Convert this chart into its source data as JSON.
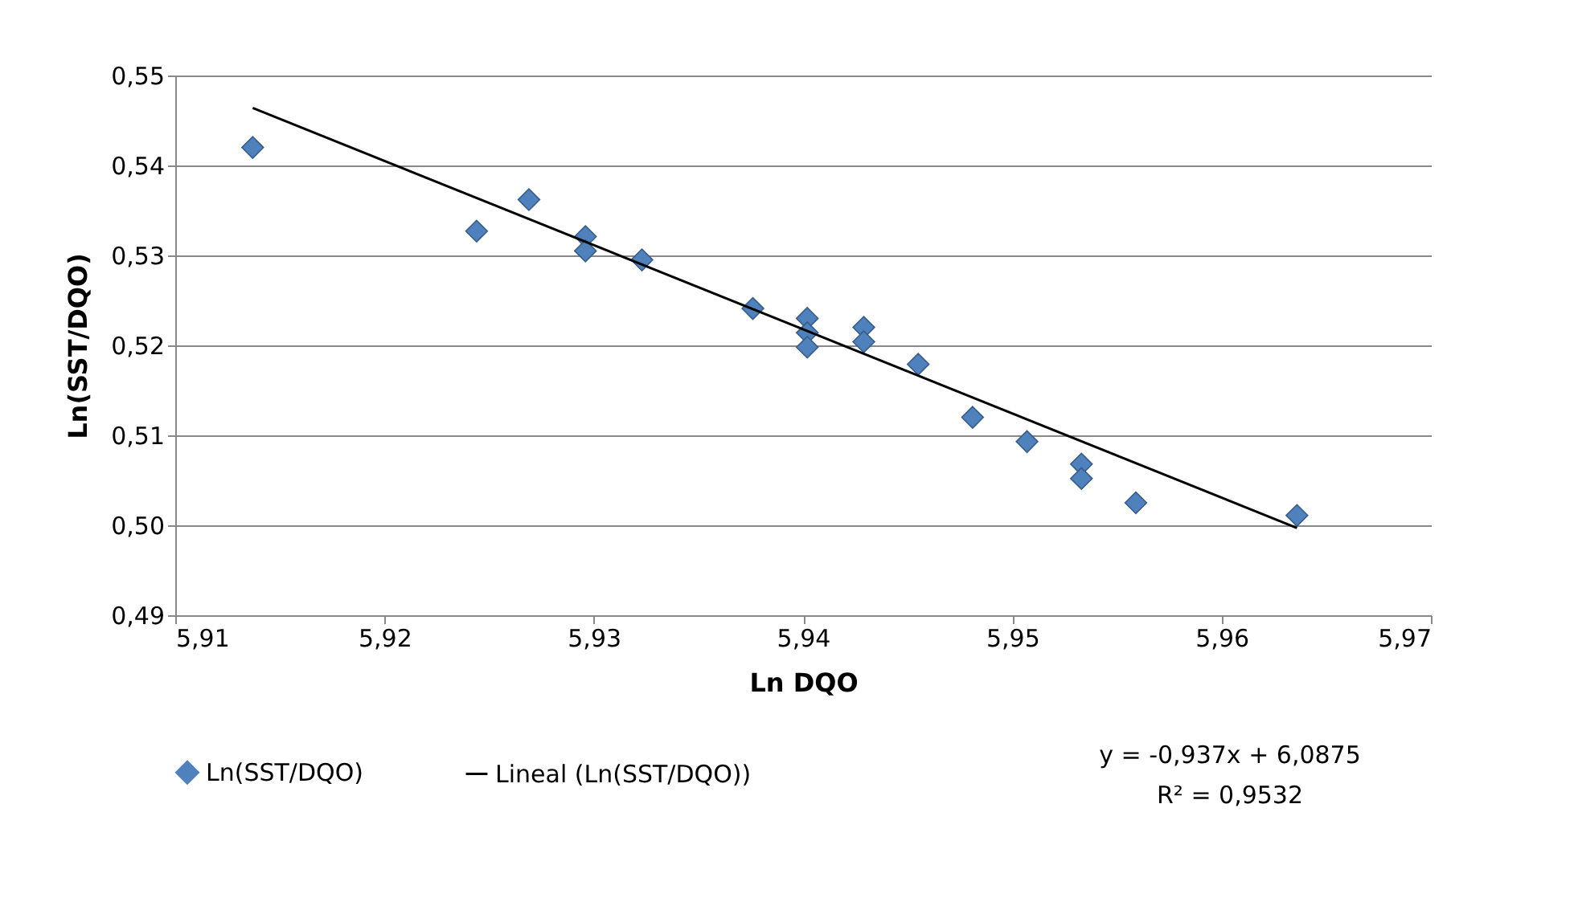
{
  "chart_data": {
    "type": "scatter",
    "xlabel": "Ln DQO",
    "ylabel": "Ln(SST/DQO)",
    "xlim": [
      5.91,
      5.97
    ],
    "xticks": [
      {
        "value": 5.91,
        "label": "5,91"
      },
      {
        "value": 5.92,
        "label": "5,92"
      },
      {
        "value": 5.93,
        "label": "5,93"
      },
      {
        "value": 5.94,
        "label": "5,94"
      },
      {
        "value": 5.95,
        "label": "5,95"
      },
      {
        "value": 5.96,
        "label": "5,96"
      },
      {
        "value": 5.97,
        "label": "5,97"
      }
    ],
    "ylim": [
      0.49,
      0.55
    ],
    "yticks": [
      {
        "value": 0.49,
        "label": "0,49"
      },
      {
        "value": 0.5,
        "label": "0,50"
      },
      {
        "value": 0.51,
        "label": "0,51"
      },
      {
        "value": 0.52,
        "label": "0,52"
      },
      {
        "value": 0.53,
        "label": "0,53"
      },
      {
        "value": 0.54,
        "label": "0,54"
      },
      {
        "value": 0.55,
        "label": "0,55"
      }
    ],
    "grid": "y",
    "legend": "bottom",
    "series": [
      {
        "name": "Ln(SST/DQO)",
        "marker": "diamond",
        "color": "#4f81bd",
        "x": [
          5.9137,
          5.9244,
          5.9269,
          5.9296,
          5.9296,
          5.9323,
          5.9376,
          5.9402,
          5.9402,
          5.9402,
          5.9429,
          5.9429,
          5.9455,
          5.9481,
          5.9507,
          5.9533,
          5.9533,
          5.9559,
          5.9636
        ],
        "values": [
          0.542,
          0.5327,
          0.5362,
          0.5321,
          0.5305,
          0.5295,
          0.5241,
          0.523,
          0.5214,
          0.5198,
          0.522,
          0.5204,
          0.5179,
          0.512,
          0.5093,
          0.5068,
          0.5052,
          0.5025,
          0.5011
        ]
      },
      {
        "name": "Lineal (Ln(SST/DQO))",
        "type": "line",
        "marker": "none",
        "line_style": "solid",
        "color": "#000000",
        "x": [
          5.9137,
          5.9636
        ],
        "values": [
          0.5464,
          0.4997
        ]
      }
    ],
    "annotations": [
      "y = -0,937x + 6,0875",
      "R² = 0,9532"
    ]
  }
}
